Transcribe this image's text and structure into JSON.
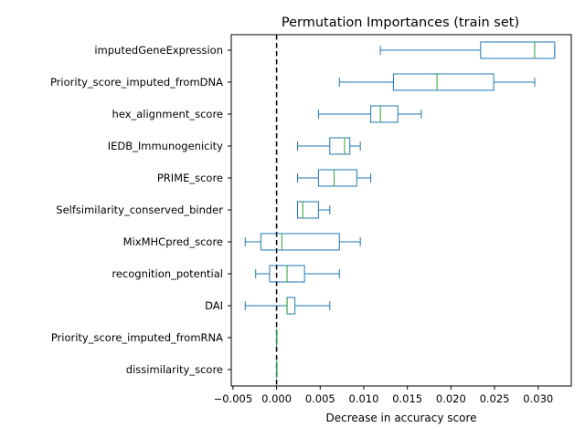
{
  "chart_data": {
    "type": "boxplot",
    "orientation": "horizontal",
    "title": "Permutation Importances (train set)",
    "xlabel": "Decrease in accuracy score",
    "ylabel": "",
    "xlim": [
      -0.0052,
      0.0338
    ],
    "xticks": [
      -0.005,
      0.0,
      0.005,
      0.01,
      0.015,
      0.02,
      0.025,
      0.03
    ],
    "xtick_labels": [
      "−0.005",
      "0.000",
      "0.005",
      "0.010",
      "0.015",
      "0.020",
      "0.025",
      "0.030"
    ],
    "reference_line": {
      "x": 0.0,
      "style": "dashed",
      "color": "#000000"
    },
    "colors": {
      "box": "#1f77b4",
      "median": "#2ca02c"
    },
    "grid": false,
    "features": [
      {
        "name": "imputedGeneExpression",
        "whislo": 0.0119,
        "q1": 0.0234,
        "med": 0.0296,
        "q3": 0.0319,
        "whishi": 0.0319
      },
      {
        "name": "Priority_score_imputed_fromDNA",
        "whislo": 0.0072,
        "q1": 0.0134,
        "med": 0.0184,
        "q3": 0.0249,
        "whishi": 0.0296
      },
      {
        "name": "hex_alignment_score",
        "whislo": 0.0048,
        "q1": 0.0108,
        "med": 0.0119,
        "q3": 0.0139,
        "whishi": 0.0166
      },
      {
        "name": "IEDB_Immunogenicity",
        "whislo": 0.0024,
        "q1": 0.0061,
        "med": 0.0078,
        "q3": 0.0084,
        "whishi": 0.0096
      },
      {
        "name": "PRIME_score",
        "whislo": 0.0024,
        "q1": 0.0048,
        "med": 0.0066,
        "q3": 0.0092,
        "whishi": 0.0108
      },
      {
        "name": "Selfsimilarity_conserved_binder",
        "whislo": 0.0024,
        "q1": 0.0024,
        "med": 0.003,
        "q3": 0.0048,
        "whishi": 0.0061
      },
      {
        "name": "MixMHCpred_score",
        "whislo": -0.0036,
        "q1": -0.0018,
        "med": 0.0006,
        "q3": 0.0072,
        "whishi": 0.0096
      },
      {
        "name": "recognition_potential",
        "whislo": -0.0024,
        "q1": -0.0008,
        "med": 0.0012,
        "q3": 0.0032,
        "whishi": 0.0072
      },
      {
        "name": "DAI",
        "whislo": -0.0036,
        "q1": 0.0012,
        "med": 0.0012,
        "q3": 0.0021,
        "whishi": 0.0061
      },
      {
        "name": "Priority_score_imputed_fromRNA",
        "whislo": 0.0,
        "q1": 0.0,
        "med": 0.0,
        "q3": 0.0,
        "whishi": 0.0
      },
      {
        "name": "dissimilarity_score",
        "whislo": 0.0,
        "q1": 0.0,
        "med": 0.0,
        "q3": 0.0,
        "whishi": 0.0
      }
    ]
  }
}
